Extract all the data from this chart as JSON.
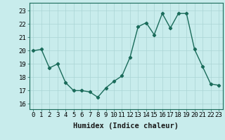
{
  "x": [
    0,
    1,
    2,
    3,
    4,
    5,
    6,
    7,
    8,
    9,
    10,
    11,
    12,
    13,
    14,
    15,
    16,
    17,
    18,
    19,
    20,
    21,
    22,
    23
  ],
  "y": [
    20.0,
    20.1,
    18.7,
    19.0,
    17.6,
    17.0,
    17.0,
    16.9,
    16.5,
    17.2,
    17.7,
    18.1,
    19.5,
    21.8,
    22.1,
    21.2,
    22.8,
    21.7,
    22.8,
    22.8,
    20.1,
    18.8,
    17.5,
    17.4
  ],
  "line_color": "#1a6b5a",
  "marker": "D",
  "markersize": 2.2,
  "linewidth": 1.0,
  "bg_color": "#c8ecec",
  "grid_color": "#aad4d4",
  "xlabel": "Humidex (Indice chaleur)",
  "ylim": [
    15.6,
    23.6
  ],
  "xlim": [
    -0.5,
    23.5
  ],
  "yticks": [
    16,
    17,
    18,
    19,
    20,
    21,
    22,
    23
  ],
  "xticks": [
    0,
    1,
    2,
    3,
    4,
    5,
    6,
    7,
    8,
    9,
    10,
    11,
    12,
    13,
    14,
    15,
    16,
    17,
    18,
    19,
    20,
    21,
    22,
    23
  ],
  "tick_fontsize": 6.5,
  "xlabel_fontsize": 7.5
}
